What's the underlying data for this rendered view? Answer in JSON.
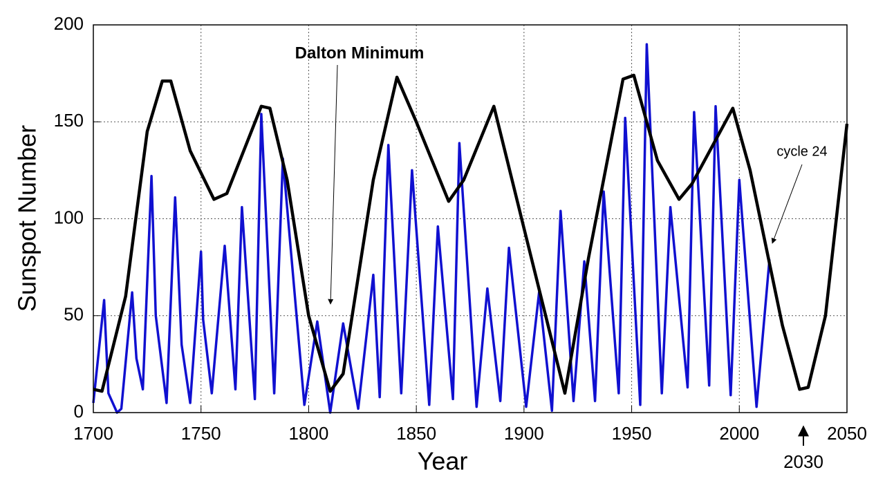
{
  "chart_data": {
    "type": "line",
    "xlabel": "Year",
    "ylabel": "Sunspot Number",
    "xlim": [
      1700,
      2050
    ],
    "xticks": [
      1700,
      1750,
      1800,
      1850,
      1900,
      1950,
      2000,
      2050
    ],
    "ylim": [
      0,
      200
    ],
    "yticks": [
      0,
      50,
      100,
      150,
      200
    ],
    "grid": true,
    "annotations": [
      "Dalton Minimum",
      "cycle 24",
      "2030"
    ],
    "series": [
      {
        "color": "#1010d0",
        "x": [
          1700,
          1705,
          1707,
          1711,
          1713,
          1718,
          1720,
          1723,
          1727,
          1729,
          1734,
          1738,
          1741,
          1745,
          1750,
          1751,
          1755,
          1761,
          1766,
          1769,
          1775,
          1778,
          1784,
          1788,
          1798,
          1804,
          1810,
          1816,
          1823,
          1830,
          1833,
          1837,
          1843,
          1848,
          1856,
          1860,
          1867,
          1870,
          1878,
          1883,
          1889,
          1893,
          1901,
          1907,
          1913,
          1917,
          1923,
          1928,
          1933,
          1937,
          1944,
          1947,
          1954,
          1957,
          1964,
          1968,
          1976,
          1979,
          1986,
          1989,
          1996,
          2000,
          2008,
          2014
        ],
        "values": [
          5,
          58,
          10,
          0,
          2,
          62,
          28,
          12,
          122,
          50,
          5,
          111,
          35,
          5,
          83,
          48,
          10,
          86,
          12,
          106,
          7,
          154,
          10,
          131,
          4,
          47,
          0,
          46,
          2,
          71,
          8,
          138,
          10,
          125,
          4,
          96,
          7,
          139,
          3,
          64,
          6,
          85,
          3,
          62,
          1,
          104,
          6,
          78,
          6,
          114,
          10,
          152,
          4,
          190,
          10,
          106,
          13,
          155,
          14,
          158,
          9,
          120,
          3,
          79
        ]
      },
      {
        "color": "#000000",
        "x": [
          1700,
          1704,
          1715,
          1725,
          1732,
          1736,
          1745,
          1756,
          1762,
          1778,
          1782,
          1790,
          1800,
          1810,
          1816,
          1830,
          1841,
          1850,
          1865,
          1872,
          1886,
          1900,
          1919,
          1930,
          1946,
          1951,
          1962,
          1972,
          1978,
          1997,
          2005,
          2020,
          2028,
          2032,
          2040,
          2050
        ],
        "values": [
          12,
          11,
          60,
          145,
          171,
          171,
          135,
          110,
          113,
          158,
          157,
          120,
          50,
          11,
          20,
          120,
          173,
          150,
          109,
          120,
          158,
          95,
          10,
          80,
          172,
          174,
          130,
          110,
          118,
          157,
          125,
          45,
          12,
          13,
          50,
          149
        ]
      }
    ]
  }
}
